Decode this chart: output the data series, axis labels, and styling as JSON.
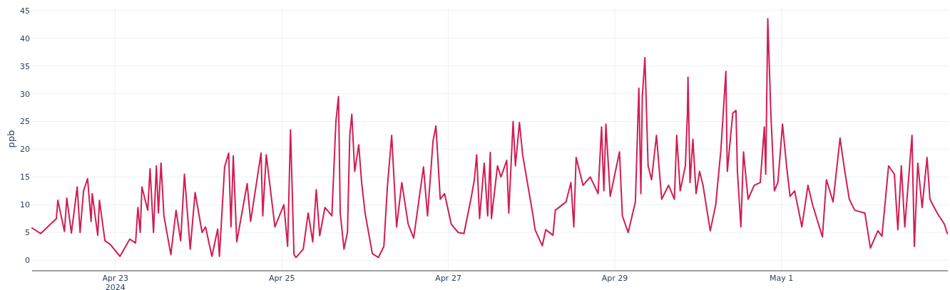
{
  "chart_data": {
    "type": "line",
    "ylabel": "ppb",
    "xlim": [
      "2024-04-22",
      "2024-05-03"
    ],
    "xticks": [
      {
        "value": "2024-04-23",
        "label": "Apr 23\n2024"
      },
      {
        "value": "2024-04-25",
        "label": "Apr 25"
      },
      {
        "value": "2024-04-27",
        "label": "Apr 27"
      },
      {
        "value": "2024-04-29",
        "label": "Apr 29"
      },
      {
        "value": "2024-05-01",
        "label": "May 1"
      }
    ],
    "ylim": [
      -1.9,
      45.6
    ],
    "yticks": [
      0,
      5,
      10,
      15,
      20,
      25,
      30,
      35,
      40,
      45
    ],
    "grid": true,
    "line_style": "solid",
    "marker": "none",
    "x": [
      "2024-04-22T00:00",
      "2024-04-22T02:30",
      "2024-04-22T07:00",
      "2024-04-22T07:25",
      "2024-04-22T09:20",
      "2024-04-22T10:00",
      "2024-04-22T11:20",
      "2024-04-22T13:00",
      "2024-04-22T13:50",
      "2024-04-22T14:50",
      "2024-04-22T16:00",
      "2024-04-22T17:00",
      "2024-04-22T17:20",
      "2024-04-22T18:55",
      "2024-04-22T19:25",
      "2024-04-22T21:00",
      "2024-04-22T22:35",
      "2024-04-23T01:20",
      "2024-04-23T04:10",
      "2024-04-23T05:50",
      "2024-04-23T06:30",
      "2024-04-23T07:10",
      "2024-04-23T07:40",
      "2024-04-23T09:20",
      "2024-04-23T10:00",
      "2024-04-23T11:00",
      "2024-04-23T11:50",
      "2024-04-23T12:25",
      "2024-04-23T13:10",
      "2024-04-23T14:00",
      "2024-04-23T16:00",
      "2024-04-23T17:30",
      "2024-04-23T18:50",
      "2024-04-23T19:55",
      "2024-04-23T21:35",
      "2024-04-23T23:00",
      "2024-04-24T01:00",
      "2024-04-24T02:00",
      "2024-04-24T03:50",
      "2024-04-24T05:30",
      "2024-04-24T06:00",
      "2024-04-24T07:30",
      "2024-04-24T08:40",
      "2024-04-24T09:20",
      "2024-04-24T10:00",
      "2024-04-24T11:00",
      "2024-04-24T14:00",
      "2024-04-24T15:00",
      "2024-04-24T18:00",
      "2024-04-24T18:30",
      "2024-04-24T19:30",
      "2024-04-24T22:00",
      "2024-04-25T00:35",
      "2024-04-25T01:40",
      "2024-04-25T02:30",
      "2024-04-25T03:30",
      "2024-04-25T04:05",
      "2024-04-25T06:10",
      "2024-04-25T07:35",
      "2024-04-25T08:55",
      "2024-04-25T09:55",
      "2024-04-25T10:55",
      "2024-04-25T12:25",
      "2024-04-25T14:25",
      "2024-04-25T15:35",
      "2024-04-25T16:20",
      "2024-04-25T16:50",
      "2024-04-25T17:55",
      "2024-04-25T18:55",
      "2024-04-25T19:35",
      "2024-04-25T20:10",
      "2024-04-25T21:00",
      "2024-04-25T22:10",
      "2024-04-25T23:00",
      "2024-04-26T00:00",
      "2024-04-26T02:05",
      "2024-04-26T03:50",
      "2024-04-26T05:25",
      "2024-04-26T06:25",
      "2024-04-26T07:40",
      "2024-04-26T09:05",
      "2024-04-26T10:35",
      "2024-04-26T12:25",
      "2024-04-26T14:00",
      "2024-04-26T16:50",
      "2024-04-26T18:00",
      "2024-04-26T19:35",
      "2024-04-26T20:25",
      "2024-04-26T21:40",
      "2024-04-26T22:55",
      "2024-04-27T00:50",
      "2024-04-27T02:50",
      "2024-04-27T04:30",
      "2024-04-27T06:30",
      "2024-04-27T07:30",
      "2024-04-27T08:10",
      "2024-04-27T09:00",
      "2024-04-27T10:20",
      "2024-04-27T11:20",
      "2024-04-27T12:05",
      "2024-04-27T12:25",
      "2024-04-27T14:10",
      "2024-04-27T15:10",
      "2024-04-27T16:50",
      "2024-04-27T17:25",
      "2024-04-27T18:40",
      "2024-04-27T19:20",
      "2024-04-27T20:30",
      "2024-04-27T21:25",
      "2024-04-27T23:00",
      "2024-04-28T00:25",
      "2024-04-28T01:00",
      "2024-04-28T03:05",
      "2024-04-28T04:05",
      "2024-04-28T06:10",
      "2024-04-28T06:50",
      "2024-04-28T09:55",
      "2024-04-28T11:20",
      "2024-04-28T12:10",
      "2024-04-28T12:50",
      "2024-04-28T14:50",
      "2024-04-28T16:55",
      "2024-04-28T19:10",
      "2024-04-28T20:10",
      "2024-04-28T20:50",
      "2024-04-28T21:25",
      "2024-04-28T22:40",
      "2024-04-29T01:20",
      "2024-04-29T02:10",
      "2024-04-29T03:50",
      "2024-04-29T05:55",
      "2024-04-29T06:55",
      "2024-04-29T07:30",
      "2024-04-29T07:55",
      "2024-04-29T08:40",
      "2024-04-29T09:35",
      "2024-04-29T10:35",
      "2024-04-29T12:00",
      "2024-04-29T13:30",
      "2024-04-29T15:30",
      "2024-04-29T17:10",
      "2024-04-29T17:50",
      "2024-04-29T18:50",
      "2024-04-29T20:20",
      "2024-04-29T20:55",
      "2024-04-29T21:05",
      "2024-04-29T21:40",
      "2024-04-29T22:30",
      "2024-04-29T23:25",
      "2024-04-30T00:25",
      "2024-04-30T01:25",
      "2024-04-30T03:30",
      "2024-04-30T05:05",
      "2024-04-30T06:35",
      "2024-04-30T08:00",
      "2024-04-30T08:25",
      "2024-04-30T10:00",
      "2024-04-30T10:55",
      "2024-04-30T11:20",
      "2024-04-30T12:20",
      "2024-04-30T13:05",
      "2024-04-30T14:25",
      "2024-04-30T16:10",
      "2024-04-30T17:55",
      "2024-04-30T19:05",
      "2024-04-30T19:30",
      "2024-04-30T20:05",
      "2024-04-30T21:00",
      "2024-04-30T22:00",
      "2024-04-30T23:00",
      "2024-05-01T00:20",
      "2024-05-01T01:30",
      "2024-05-01T02:30",
      "2024-05-01T03:50",
      "2024-05-01T05:55",
      "2024-05-01T07:40",
      "2024-05-01T09:00",
      "2024-05-01T11:50",
      "2024-05-01T13:00",
      "2024-05-01T14:55",
      "2024-05-01T16:55",
      "2024-05-01T18:10",
      "2024-05-01T19:35",
      "2024-05-01T21:10",
      "2024-05-02T00:05",
      "2024-05-02T01:40",
      "2024-05-02T03:50",
      "2024-05-02T05:00",
      "2024-05-02T06:55",
      "2024-05-02T08:35",
      "2024-05-02T09:35",
      "2024-05-02T10:35",
      "2024-05-02T11:35",
      "2024-05-02T13:40",
      "2024-05-02T14:20",
      "2024-05-02T15:20",
      "2024-05-02T16:35",
      "2024-05-02T18:00",
      "2024-05-02T18:50",
      "2024-05-02T20:55",
      "2024-05-02T23:00",
      "2024-05-02T23:50"
    ],
    "series": [
      {
        "color": "#d11d53",
        "values": [
          5.8,
          4.8,
          7.5,
          10.8,
          5.2,
          11.2,
          4.9,
          13.2,
          5,
          12.5,
          14.7,
          7,
          12,
          4.5,
          10.8,
          3.5,
          2.8,
          0.7,
          3.8,
          3.1,
          9.5,
          5,
          13.2,
          9,
          16.5,
          5,
          17,
          8.5,
          17.5,
          8,
          1,
          9,
          3.5,
          15.5,
          2,
          12.2,
          5,
          6,
          0.7,
          5.6,
          0.7,
          16.8,
          19.3,
          6,
          18.8,
          3.3,
          13.8,
          7,
          19.3,
          8,
          19,
          6,
          10,
          2.5,
          23.5,
          1,
          0.5,
          2,
          8.5,
          3.3,
          12.7,
          4.4,
          9.5,
          8,
          25,
          29.5,
          8.5,
          2,
          5,
          22.5,
          26.3,
          16,
          20.8,
          14,
          8.5,
          1.2,
          0.5,
          2.5,
          13.2,
          22.5,
          6,
          14,
          6.5,
          4,
          16.8,
          8,
          21.5,
          24.2,
          11,
          12,
          6.5,
          5,
          4.8,
          11,
          14.5,
          19,
          7.5,
          17.5,
          8,
          19.4,
          7.5,
          17,
          15,
          18,
          8.5,
          25,
          17,
          24.8,
          19,
          13.2,
          8,
          5.5,
          2.6,
          5.5,
          4.5,
          9,
          10.5,
          14,
          6,
          18.5,
          13.5,
          15,
          12,
          24,
          12.5,
          24.5,
          11.5,
          19.5,
          8,
          5,
          10.5,
          31,
          12,
          29.5,
          36.5,
          17,
          14.5,
          22.5,
          11,
          13.5,
          11,
          22.5,
          12.5,
          17,
          26.5,
          33,
          14,
          21.8,
          12,
          16,
          13.5,
          5.3,
          10,
          20,
          34,
          16,
          26.5,
          27,
          16,
          6,
          19.5,
          11,
          13.5,
          14,
          24,
          15.5,
          43.5,
          26,
          12.5,
          14,
          24.5,
          17,
          11.5,
          12.5,
          6,
          13.5,
          10,
          4.2,
          14.5,
          10.5,
          22,
          16.5,
          11,
          9,
          8.5,
          2.2,
          5.3,
          4.3,
          17,
          15.5,
          5.5,
          17,
          6,
          22.5,
          2.5,
          17.5,
          9.5,
          18.5,
          11,
          8.5,
          6.5,
          4.8
        ]
      }
    ]
  }
}
